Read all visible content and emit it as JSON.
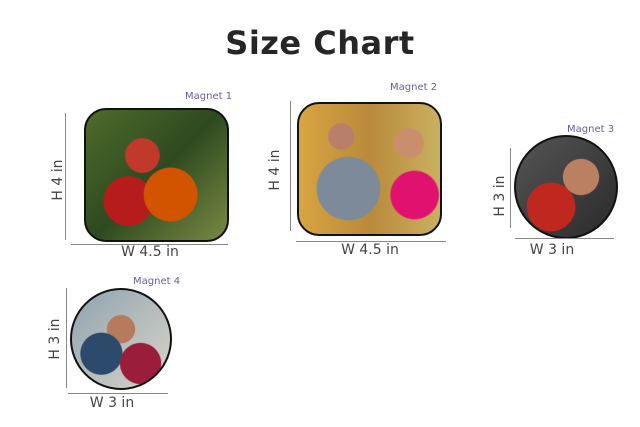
{
  "title": "Size Chart",
  "magnets": [
    {
      "label": "Magnet 1",
      "height": "H 4 in",
      "width": "W 4.5 in",
      "shape": "rounded-rectangle"
    },
    {
      "label": "Magnet 2",
      "height": "H 4 in",
      "width": "W 4.5 in",
      "shape": "rounded-rectangle"
    },
    {
      "label": "Magnet 3",
      "height": "H 3 in",
      "width": "W 3 in",
      "shape": "circle"
    },
    {
      "label": "Magnet 4",
      "height": "H 3 in",
      "width": "W 3 in",
      "shape": "circle"
    }
  ],
  "colors": {
    "title": "#262626",
    "label": "#6b5aa8",
    "dimension_text": "#444444"
  }
}
